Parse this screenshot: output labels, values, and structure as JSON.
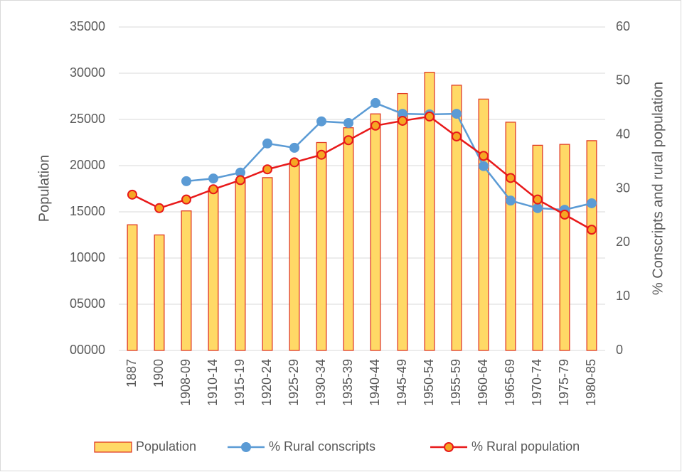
{
  "chart_data": {
    "type": "combo",
    "categories": [
      "1887",
      "1900",
      "1908-09",
      "1910-14",
      "1915-19",
      "1920-24",
      "1925-29",
      "1930-34",
      "1935-39",
      "1940-44",
      "1945-49",
      "1950-54",
      "1955-59",
      "1960-64",
      "1965-69",
      "1970-74",
      "1975-79",
      "1980-85"
    ],
    "series": [
      {
        "name": "Population",
        "type": "bar",
        "color": "#ffd966",
        "edge_color": "#e03c25",
        "values": [
          13600,
          12500,
          15100,
          17500,
          18500,
          18700,
          20300,
          22500,
          24100,
          25600,
          27800,
          30100,
          28700,
          27200,
          24700,
          22200,
          22300,
          22700
        ]
      },
      {
        "name": "% Rural conscripts",
        "type": "line",
        "axis": "y2",
        "color": "#5b9bd5",
        "marker_color": "#5b9bd5",
        "values": [
          null,
          null,
          31.4,
          31.9,
          33.0,
          38.4,
          37.6,
          42.5,
          42.2,
          45.9,
          43.9,
          43.8,
          43.9,
          34.2,
          27.8,
          26.4,
          26.1,
          27.3
        ]
      },
      {
        "name": "% Rural population",
        "type": "line",
        "axis": "y2",
        "color": "#e8191a",
        "marker_color": "#f5a623",
        "values": [
          28.9,
          26.4,
          28.0,
          29.9,
          31.6,
          33.6,
          34.9,
          36.3,
          39.0,
          41.7,
          42.6,
          43.4,
          39.7,
          36.1,
          32.0,
          28.0,
          25.2,
          22.4
        ]
      }
    ],
    "ylabel": "Population",
    "y2label": "% Conscripts and rural population",
    "ylim": [
      0,
      35000
    ],
    "yticks": [
      {
        "value": 0,
        "label": "00000"
      },
      {
        "value": 5000,
        "label": "05000"
      },
      10000,
      15000,
      20000,
      25000,
      30000,
      35000
    ],
    "y2lim": [
      0,
      60
    ],
    "y2ticks": [
      0,
      10,
      20,
      30,
      40,
      50,
      60
    ],
    "grid": true,
    "legend": "bottom"
  }
}
